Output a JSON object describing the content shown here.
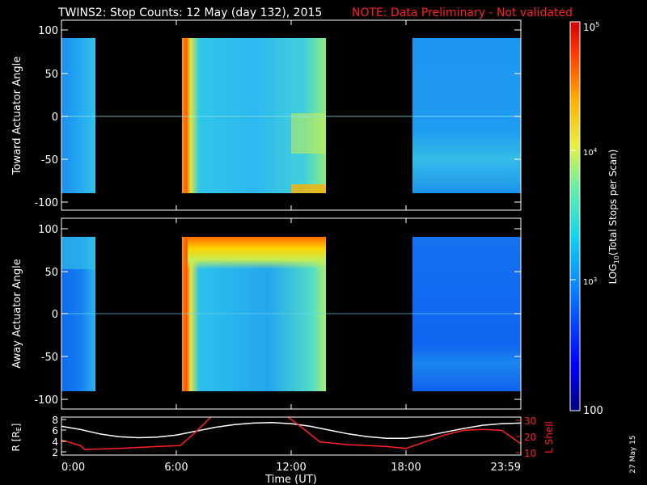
{
  "header": {
    "title": "TWINS2: Stop Counts: 12 May (day 132), 2015",
    "note": "NOTE: Data Preliminary - Not validated",
    "title_color": "#ffffff",
    "note_color": "#ff2020"
  },
  "footer": {
    "stamp": "27 May 15"
  },
  "chart_data": [
    {
      "type": "heatmap",
      "panel": "top",
      "ylabel": "Toward Actuator Angle",
      "ylim": [
        -110,
        110
      ],
      "yticks": [
        -100,
        -50,
        0,
        50,
        100
      ],
      "xlim_hours": [
        0,
        24
      ],
      "data_range_deg": [
        -90,
        90
      ],
      "data_intervals_hours": [
        [
          0.0,
          1.4
        ],
        [
          6.15,
          13.7
        ],
        [
          18.0,
          24.0
        ]
      ],
      "value_scale": "log10 total stops per scan",
      "sample_levels": [
        {
          "interval": "0:00-1:24",
          "typical_log10": 2.8
        },
        {
          "interval": "6:09-13:42",
          "typical_log10": 3.2,
          "edge_log10": 4.6
        },
        {
          "interval": "18:00-23:59",
          "typical_log10": 2.9
        }
      ]
    },
    {
      "type": "heatmap",
      "panel": "middle",
      "ylabel": "Away Actuator Angle",
      "ylim": [
        -110,
        110
      ],
      "yticks": [
        -100,
        -50,
        0,
        50,
        100
      ],
      "xlim_hours": [
        0,
        24
      ],
      "data_range_deg": [
        -90,
        90
      ],
      "data_intervals_hours": [
        [
          0.0,
          1.4
        ],
        [
          6.15,
          13.7
        ],
        [
          18.0,
          24.0
        ]
      ],
      "value_scale": "log10 total stops per scan",
      "sample_levels": [
        {
          "interval": "0:00-1:24",
          "typical_log10": 2.6
        },
        {
          "interval": "6:09-13:42",
          "typical_log10": 3.3,
          "edge_log10": 4.7
        },
        {
          "interval": "18:00-23:59",
          "typical_log10": 2.6
        }
      ]
    },
    {
      "type": "line",
      "panel": "bottom",
      "xlabel": "Time (UT)",
      "xticks": [
        "0:00",
        "6:00",
        "12:00",
        "18:00",
        "23:59"
      ],
      "xtick_hours": [
        0,
        6,
        12,
        18,
        23.983
      ],
      "left_axis": {
        "label": "R [RE]",
        "ylim": [
          1.5,
          8.5
        ],
        "ticks": [
          2,
          4,
          6,
          8
        ],
        "color": "#ffffff"
      },
      "right_axis": {
        "label": "L Shell",
        "ylim": [
          10,
          30
        ],
        "ticks": [
          10,
          20,
          30
        ],
        "color": "#ff2020"
      },
      "series": [
        {
          "name": "R",
          "axis": "left",
          "color": "#ffffff",
          "x": [
            0,
            1,
            2,
            3,
            4,
            5,
            6,
            7,
            8,
            9,
            10,
            11,
            12,
            13,
            14,
            15,
            16,
            17,
            18,
            19,
            20,
            21,
            22,
            23,
            24
          ],
          "y": [
            6.8,
            6.2,
            5.4,
            4.9,
            4.7,
            4.8,
            5.2,
            5.9,
            6.6,
            7.1,
            7.4,
            7.5,
            7.3,
            6.8,
            6.1,
            5.4,
            4.9,
            4.6,
            4.6,
            5.0,
            5.7,
            6.4,
            7.0,
            7.3,
            7.4
          ]
        },
        {
          "name": "L Shell",
          "axis": "right",
          "color": "#ff2020",
          "x": [
            0,
            1,
            1.2,
            3,
            5,
            6.2,
            7,
            7.8,
            8.0
          ],
          "y": [
            18,
            15,
            13,
            13.5,
            14.5,
            15,
            22,
            30,
            31
          ]
        },
        {
          "name": "L Shell",
          "axis": "right",
          "color": "#ff2020",
          "x": [
            11.7,
            12.5,
            13.5,
            15,
            17,
            18.0,
            19,
            20,
            21,
            22,
            23,
            24
          ],
          "y": [
            31,
            25,
            17,
            15.5,
            14.5,
            13.5,
            17,
            20.5,
            23,
            23.5,
            23,
            16
          ]
        }
      ]
    },
    {
      "type": "colorbar",
      "label": "LOG10(Total Stops per Scan)",
      "scale": "log",
      "range": [
        100,
        100000
      ],
      "tick_labels": [
        "10^5",
        "10^4",
        "10^3",
        "100"
      ],
      "tick_values": [
        100000,
        10000,
        1000,
        100
      ],
      "tick_texts": {
        "t5": "10",
        "t5s": "5",
        "t4": "10",
        "t4s": "4",
        "t3": "10",
        "t3s": "3",
        "t2": "100"
      }
    }
  ],
  "axes_text": {
    "top_yticks": [
      "100",
      "50",
      "0",
      "-50",
      "-100"
    ],
    "mid_yticks": [
      "100",
      "50",
      "0",
      "-50",
      "-100"
    ],
    "bot_left_ticks": [
      "8",
      "6",
      "4",
      "2"
    ],
    "bot_right_ticks": [
      "30",
      "20",
      "10"
    ],
    "bot_left_label": "R [R",
    "bot_left_label_sub": "E",
    "bot_left_label_end": "]",
    "bot_right_label": "L Shell",
    "colorbar_label": "LOG",
    "colorbar_label_sub": "10",
    "colorbar_label_rest": "(Total Stops per Scan)"
  }
}
